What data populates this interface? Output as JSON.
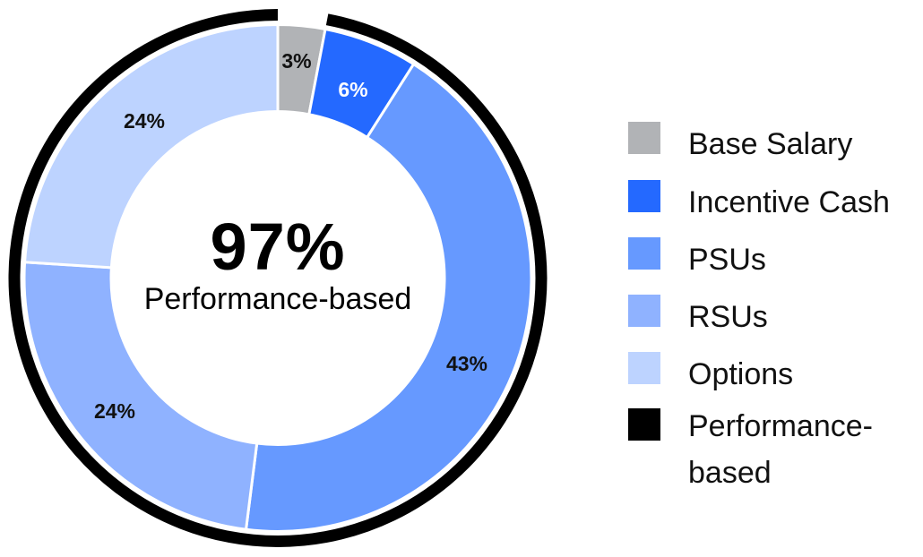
{
  "chart_data": {
    "type": "pie",
    "subtype": "donut",
    "title": "",
    "center": {
      "value": "97%",
      "label": "Performance-based"
    },
    "categories": [
      "Base Salary",
      "Incentive Cash",
      "PSUs",
      "RSUs",
      "Options"
    ],
    "values": [
      3,
      6,
      43,
      24,
      24
    ],
    "labels": [
      "3%",
      "6%",
      "43%",
      "24%",
      "24%"
    ],
    "colors": [
      "#b1b3b6",
      "#2469ff",
      "#6699ff",
      "#8fb2ff",
      "#bdd3ff"
    ],
    "label_colors": [
      "#111111",
      "#ffffff",
      "#111111",
      "#111111",
      "#111111"
    ],
    "start_angle_deg": 0,
    "direction": "clockwise",
    "overlay_arc": {
      "name": "Performance-based",
      "value": 97,
      "color": "#000000",
      "covers": [
        "Incentive Cash",
        "PSUs",
        "RSUs",
        "Options"
      ]
    },
    "legend_position": "right",
    "legend": [
      {
        "label": "Base Salary",
        "color": "#b1b3b6"
      },
      {
        "label": "Incentive Cash",
        "color": "#2469ff"
      },
      {
        "label": "PSUs",
        "color": "#6699ff"
      },
      {
        "label": "RSUs",
        "color": "#8fb2ff"
      },
      {
        "label": "Options",
        "color": "#bdd3ff"
      },
      {
        "label": "Performance-based",
        "color": "#000000"
      }
    ]
  }
}
